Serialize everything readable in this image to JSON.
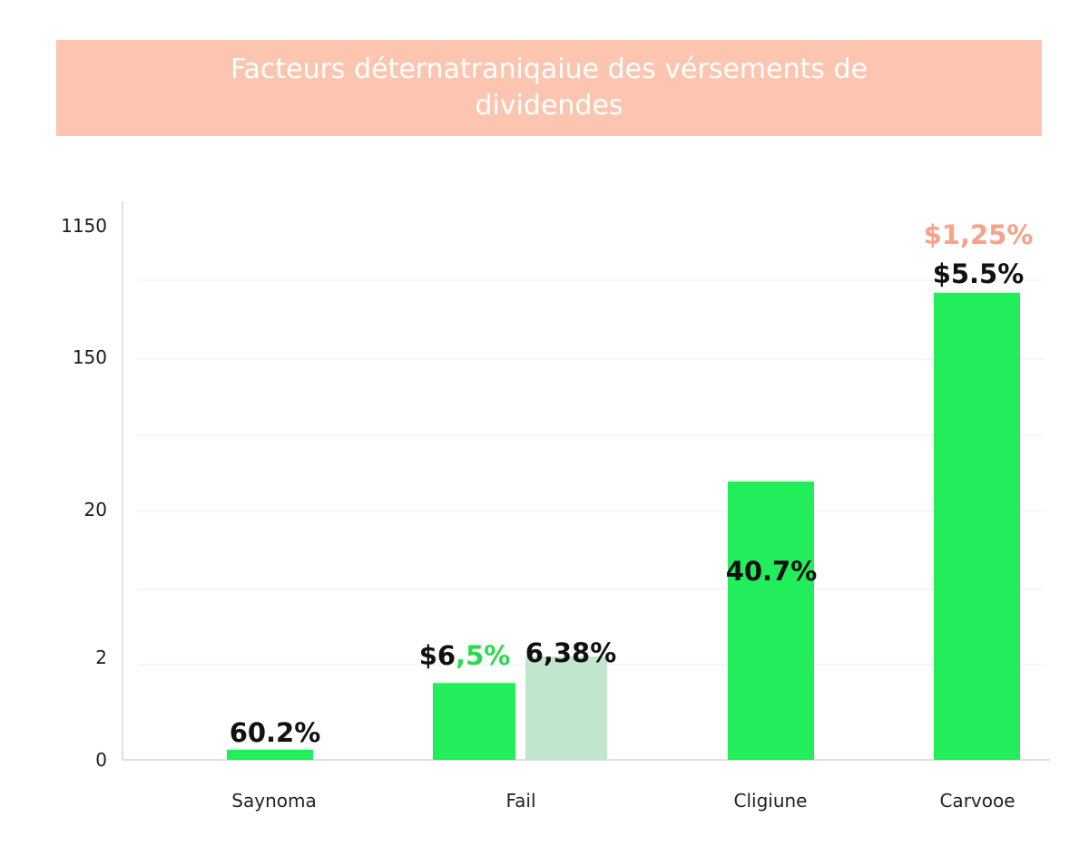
{
  "chart_data": {
    "type": "bar",
    "title": "Facteurs déternatraniqaiue des vérsements de dividendes",
    "xlabel": "",
    "ylabel": "",
    "y_tick_labels": [
      "0",
      "2",
      "20",
      "150",
      "1150"
    ],
    "grid": true,
    "colors": {
      "title_banner": "#fbc5b0",
      "bar_primary": "#22ee5c",
      "bar_secondary": "#c1e6cd",
      "label_accent_green": "#2bd94f",
      "label_accent_salmon": "#f7a28a"
    },
    "categories": [
      "Saynoma",
      "Fail",
      "Cligiune",
      "Carvooe"
    ],
    "bars": [
      {
        "category": "Saynoma",
        "value": 0.2,
        "color": "#22ee5c",
        "labels": [
          {
            "parts": [
              {
                "text": "60.2%",
                "color": "#111111"
              }
            ]
          }
        ]
      },
      {
        "category": "Fail",
        "value": 1.5,
        "color": "#22ee5c",
        "labels": [
          {
            "parts": [
              {
                "text": "$6",
                "color": "#111111"
              },
              {
                "text": ",5%",
                "color": "#2bd94f"
              }
            ]
          }
        ]
      },
      {
        "category": "Fail",
        "value": 2.1,
        "color": "#c1e6cd",
        "labels": [
          {
            "parts": [
              {
                "text": "6,38%",
                "color": "#111111"
              }
            ]
          }
        ]
      },
      {
        "category": "Cligiune",
        "value": 44,
        "color": "#22ee5c",
        "labels": [
          {
            "parts": [
              {
                "text": "40.7%",
                "color": "#111111"
              }
            ]
          }
        ]
      },
      {
        "category": "Carvooe",
        "value": 640,
        "color": "#22ee5c",
        "labels": [
          {
            "parts": [
              {
                "text": "$1,25%",
                "color": "#f7a28a"
              }
            ]
          },
          {
            "parts": [
              {
                "text": "$5.5%",
                "color": "#111111"
              }
            ]
          }
        ]
      }
    ]
  }
}
